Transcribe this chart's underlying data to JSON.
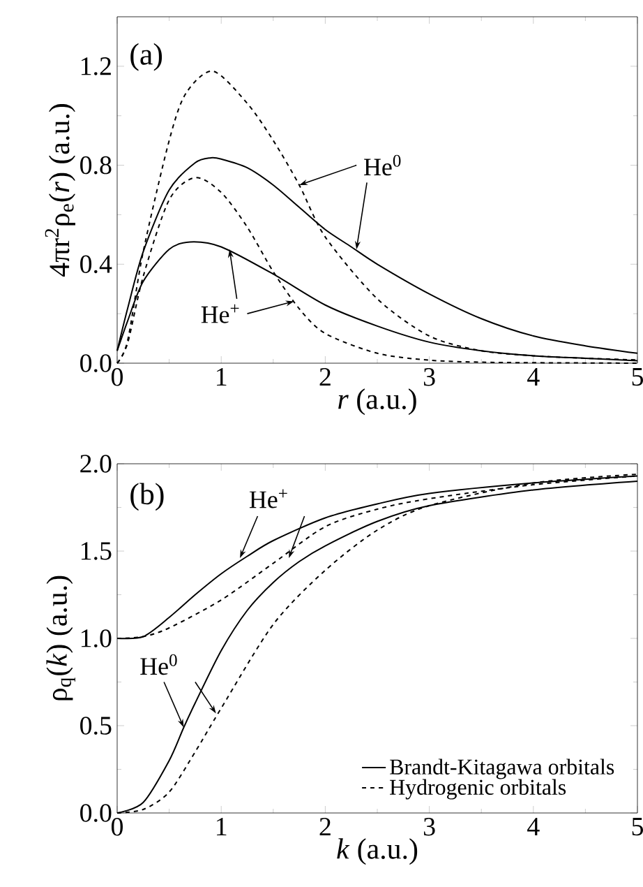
{
  "chart_data": [
    {
      "type": "line",
      "xlabel": "*r* (a.u.)",
      "ylabel": "4πr$^{2}$ρ$_{e}$(*r*) (a.u.)",
      "xlim": [
        0,
        5
      ],
      "xticks": [
        0,
        1,
        2,
        3,
        4,
        5
      ],
      "ylim": [
        0,
        1.4
      ],
      "yticks": [
        {
          "value": 0,
          "label": "0.0"
        },
        0.4,
        0.8,
        1.2
      ],
      "annotations": [
        "(a)",
        {
          "text": "He$^{0}$",
          "x": 1.75,
          "y": 0.72
        },
        {
          "text": "He$^{+}$",
          "x": 1.08,
          "y": 0.46
        }
      ],
      "series": [
        {
          "color": "#000000",
          "line_style": "solid",
          "x": [
            0,
            0.1,
            0.25,
            0.5,
            0.75,
            0.9,
            1.0,
            1.25,
            1.5,
            1.75,
            2.0,
            2.25,
            2.5,
            3.0,
            3.5,
            4.0,
            4.5,
            5.0
          ],
          "values": [
            0.05,
            0.22,
            0.45,
            0.7,
            0.81,
            0.83,
            0.825,
            0.79,
            0.72,
            0.63,
            0.54,
            0.47,
            0.4,
            0.28,
            0.18,
            0.11,
            0.07,
            0.04
          ]
        },
        {
          "color": "#000000",
          "line_style": "solid",
          "x": [
            0,
            0.1,
            0.25,
            0.5,
            0.7,
            1.0,
            1.5,
            2.0,
            2.5,
            3.0,
            3.5,
            4.0,
            4.5,
            5.0
          ],
          "values": [
            0.05,
            0.17,
            0.33,
            0.46,
            0.49,
            0.47,
            0.36,
            0.235,
            0.15,
            0.085,
            0.05,
            0.03,
            0.02,
            0.01
          ]
        },
        {
          "color": "#000000",
          "line_style": "dashed",
          "x": [
            0,
            0.1,
            0.25,
            0.5,
            0.66,
            0.92,
            1.25,
            1.5,
            1.75,
            2.0,
            2.5,
            3.0,
            3.5,
            4.0,
            4.5,
            5.0
          ],
          "values": [
            0,
            0.09,
            0.45,
            0.9,
            1.09,
            1.18,
            1.05,
            0.9,
            0.72,
            0.51,
            0.26,
            0.11,
            0.05,
            0.03,
            0.02,
            0.013
          ]
        },
        {
          "color": "#000000",
          "line_style": "dashed",
          "x": [
            0,
            0.1,
            0.25,
            0.5,
            0.75,
            1.0,
            1.25,
            1.5,
            1.75,
            2.0,
            2.5,
            3.0,
            3.5,
            4.0,
            5.0
          ],
          "values": [
            0,
            0.08,
            0.35,
            0.66,
            0.75,
            0.69,
            0.55,
            0.37,
            0.22,
            0.12,
            0.04,
            0.012,
            0.004,
            0.002,
            0
          ]
        }
      ]
    },
    {
      "type": "line",
      "xlabel": "*k* (a.u.)",
      "ylabel": "ρ$_{q}$(*k*) (a.u.)",
      "xlim": [
        0,
        5
      ],
      "xticks": [
        0,
        1,
        2,
        3,
        4,
        5
      ],
      "ylim": [
        0,
        2.0
      ],
      "yticks": [
        {
          "value": 0,
          "label": "0.0"
        },
        0.5,
        {
          "value": 1,
          "label": "1.0"
        },
        1.5,
        {
          "value": 2,
          "label": "2.0"
        }
      ],
      "legend": "bottom right",
      "annotations": [
        "(b)",
        {
          "text": "He$^{+}$",
          "x": 1.18,
          "y": 1.46
        },
        {
          "text": "He$^{0}$",
          "x": 0.64,
          "y": 0.49
        }
      ],
      "series": [
        {
          "name": "Brandt-Kitagawa orbitals",
          "color": "#000000",
          "line_style": "solid",
          "x": [
            0,
            0.25,
            0.5,
            0.75,
            1.0,
            1.25,
            1.5,
            2.0,
            2.5,
            3.0,
            4.0,
            5.0
          ],
          "values": [
            1.0,
            1.01,
            1.12,
            1.25,
            1.37,
            1.47,
            1.56,
            1.69,
            1.77,
            1.83,
            1.89,
            1.93
          ]
        },
        {
          "name": "Hydrogenic orbitals",
          "color": "#000000",
          "line_style": "dashed",
          "x": [
            0,
            0.25,
            0.5,
            1.0,
            1.5,
            2.0,
            2.5,
            3.0,
            4.0,
            5.0
          ],
          "values": [
            1.0,
            1.01,
            1.06,
            1.22,
            1.43,
            1.64,
            1.74,
            1.8,
            1.88,
            1.93
          ]
        },
        {
          "color": "#000000",
          "line_style": "solid",
          "x": [
            0,
            0.25,
            0.5,
            0.64,
            0.75,
            1.0,
            1.25,
            1.5,
            1.75,
            2.0,
            2.5,
            3.0,
            4.0,
            5.0
          ],
          "values": [
            0,
            0.06,
            0.3,
            0.49,
            0.63,
            0.93,
            1.16,
            1.32,
            1.44,
            1.53,
            1.67,
            1.76,
            1.85,
            1.9
          ]
        },
        {
          "color": "#000000",
          "line_style": "dashed",
          "x": [
            0,
            0.25,
            0.5,
            0.75,
            1.0,
            1.5,
            2.0,
            2.5,
            3.0,
            4.0,
            5.0
          ],
          "values": [
            0,
            0.02,
            0.12,
            0.35,
            0.6,
            1.08,
            1.39,
            1.62,
            1.76,
            1.89,
            1.94
          ]
        }
      ]
    }
  ]
}
